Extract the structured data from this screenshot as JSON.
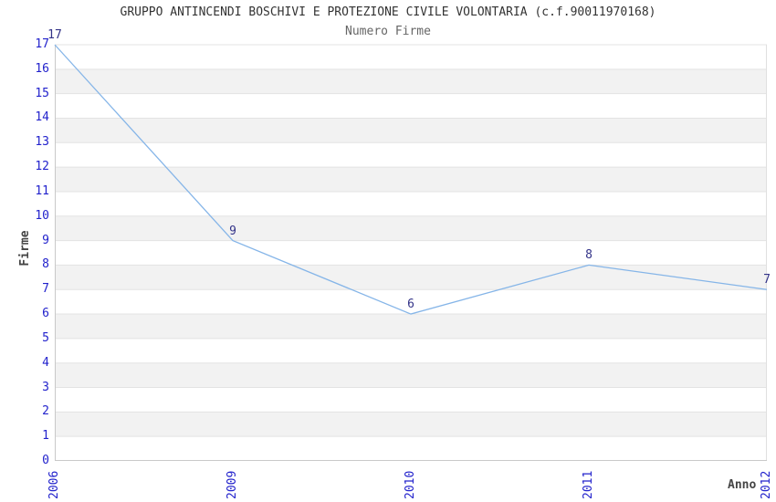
{
  "chart_data": {
    "type": "line",
    "title": "GRUPPO ANTINCENDI BOSCHIVI E PROTEZIONE CIVILE VOLONTARIA (c.f.90011970168)",
    "subtitle": "Numero Firme",
    "xlabel": "Anno",
    "ylabel": "Firme",
    "categories": [
      "2006",
      "2009",
      "2010",
      "2011",
      "2012"
    ],
    "values": [
      17,
      9,
      6,
      8,
      7
    ],
    "data_labels": [
      "17",
      "9",
      "6",
      "8",
      "7"
    ],
    "ylim": [
      0,
      17
    ],
    "ytick_step": 1,
    "grid": "horizontal-bands",
    "legend": "none",
    "colors": {
      "line": "#85b5e8",
      "band_gray": "#f2f2f2",
      "band_white": "#ffffff",
      "gridline": "#e3e3e3",
      "axis_line": "#c9c9c9",
      "right_border": "#e0e0e0",
      "tick_label": "#2222cc",
      "data_label": "#333388",
      "title": "#333333",
      "subtitle": "#666666",
      "axis_title": "#444444"
    }
  }
}
